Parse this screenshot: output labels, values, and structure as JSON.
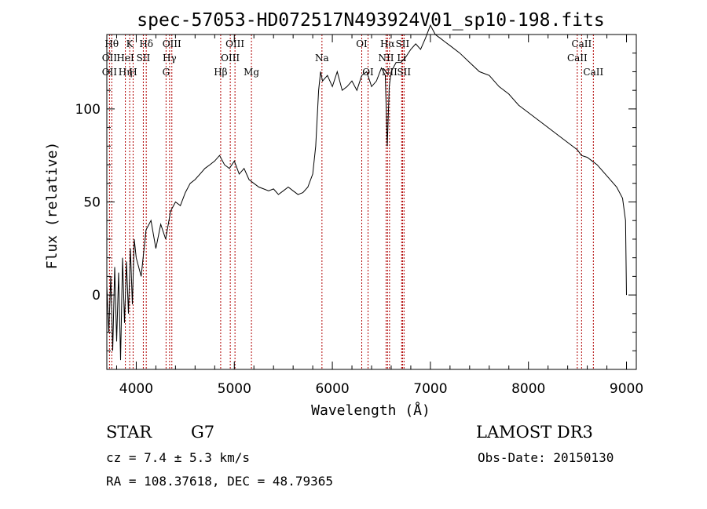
{
  "chart_data": {
    "type": "line",
    "title": "spec-57053-HD072517N493924V01_sp10-198.fits",
    "xlabel": "Wavelength (Å)",
    "ylabel": "Flux (relative)",
    "xlim": [
      3700,
      9100
    ],
    "ylim": [
      -40,
      140
    ],
    "x_ticks": [
      4000,
      5000,
      6000,
      7000,
      8000,
      9000
    ],
    "y_ticks": [
      0,
      50,
      100
    ],
    "grid": false,
    "series": [
      {
        "name": "flux",
        "x": [
          3700,
          3720,
          3740,
          3760,
          3780,
          3800,
          3820,
          3840,
          3860,
          3880,
          3900,
          3920,
          3940,
          3960,
          3980,
          4000,
          4050,
          4100,
          4150,
          4200,
          4250,
          4300,
          4350,
          4400,
          4450,
          4500,
          4550,
          4600,
          4650,
          4700,
          4750,
          4800,
          4850,
          4900,
          4950,
          5000,
          5050,
          5100,
          5150,
          5200,
          5250,
          5300,
          5350,
          5400,
          5450,
          5500,
          5550,
          5600,
          5650,
          5700,
          5750,
          5800,
          5830,
          5860,
          5880,
          5900,
          5950,
          6000,
          6050,
          6100,
          6150,
          6200,
          6250,
          6300,
          6350,
          6400,
          6450,
          6500,
          6540,
          6560,
          6580,
          6600,
          6650,
          6700,
          6750,
          6800,
          6850,
          6900,
          6950,
          7000,
          7050,
          7100,
          7150,
          7200,
          7300,
          7400,
          7500,
          7600,
          7700,
          7800,
          7900,
          8000,
          8100,
          8200,
          8300,
          8400,
          8500,
          8540,
          8600,
          8650,
          8700,
          8800,
          8900,
          8960,
          8990,
          9000
        ],
        "y": [
          5,
          -20,
          10,
          -30,
          15,
          -25,
          12,
          -35,
          20,
          -15,
          18,
          -10,
          25,
          -5,
          30,
          20,
          10,
          35,
          40,
          25,
          38,
          30,
          45,
          50,
          48,
          55,
          60,
          62,
          65,
          68,
          70,
          72,
          75,
          70,
          68,
          72,
          65,
          68,
          62,
          60,
          58,
          57,
          56,
          57,
          54,
          56,
          58,
          56,
          54,
          55,
          58,
          65,
          80,
          110,
          120,
          115,
          118,
          112,
          120,
          110,
          112,
          115,
          110,
          118,
          120,
          112,
          115,
          122,
          118,
          80,
          112,
          120,
          125,
          125,
          128,
          132,
          135,
          132,
          138,
          145,
          140,
          138,
          136,
          134,
          130,
          125,
          120,
          118,
          112,
          108,
          102,
          98,
          94,
          90,
          86,
          82,
          78,
          75,
          74,
          72,
          70,
          64,
          58,
          52,
          40,
          0
        ]
      }
    ],
    "lines": [
      {
        "w": 3727,
        "label": "OII",
        "row": 2
      },
      {
        "w": 3727,
        "label": "OII",
        "row": 3
      },
      {
        "w": 3750,
        "label": "Hθ",
        "row": 1
      },
      {
        "w": 3889,
        "label": "Hη",
        "row": 3
      },
      {
        "w": 3889,
        "label": "HeI",
        "row": 2
      },
      {
        "w": 3933,
        "label": "K",
        "row": 1
      },
      {
        "w": 3968,
        "label": "H",
        "row": 3
      },
      {
        "w": 4072,
        "label": "SII",
        "row": 2
      },
      {
        "w": 4102,
        "label": "Hδ",
        "row": 1
      },
      {
        "w": 4304,
        "label": "G",
        "row": 3
      },
      {
        "w": 4340,
        "label": "Hγ",
        "row": 2
      },
      {
        "w": 4363,
        "label": "OIII",
        "row": 1
      },
      {
        "w": 4861,
        "label": "Hβ",
        "row": 3
      },
      {
        "w": 4959,
        "label": "OIII",
        "row": 2
      },
      {
        "w": 5007,
        "label": "OIII",
        "row": 1
      },
      {
        "w": 5175,
        "label": "Mg",
        "row": 3
      },
      {
        "w": 5894,
        "label": "Na",
        "row": 2
      },
      {
        "w": 6300,
        "label": "OI",
        "row": 1
      },
      {
        "w": 6364,
        "label": "OI",
        "row": 3
      },
      {
        "w": 6548,
        "label": "NII",
        "row": 2
      },
      {
        "w": 6563,
        "label": "Hα",
        "row": 1
      },
      {
        "w": 6583,
        "label": "NII",
        "row": 3
      },
      {
        "w": 6707,
        "label": "Li",
        "row": 2
      },
      {
        "w": 6716,
        "label": "SII",
        "row": 1
      },
      {
        "w": 6731,
        "label": "SII",
        "row": 3
      },
      {
        "w": 8498,
        "label": "CaII",
        "row": 2
      },
      {
        "w": 8542,
        "label": "CaII",
        "row": 1
      },
      {
        "w": 8662,
        "label": "CaII",
        "row": 3
      }
    ]
  },
  "info": {
    "object_class": "STAR",
    "subclass": "G7",
    "survey": "LAMOST DR3",
    "cz": "cz = 7.4 ± 5.3 km/s",
    "obs_date": "Obs-Date: 20150130",
    "coords": "RA = 108.37618, DEC =  48.79365"
  }
}
